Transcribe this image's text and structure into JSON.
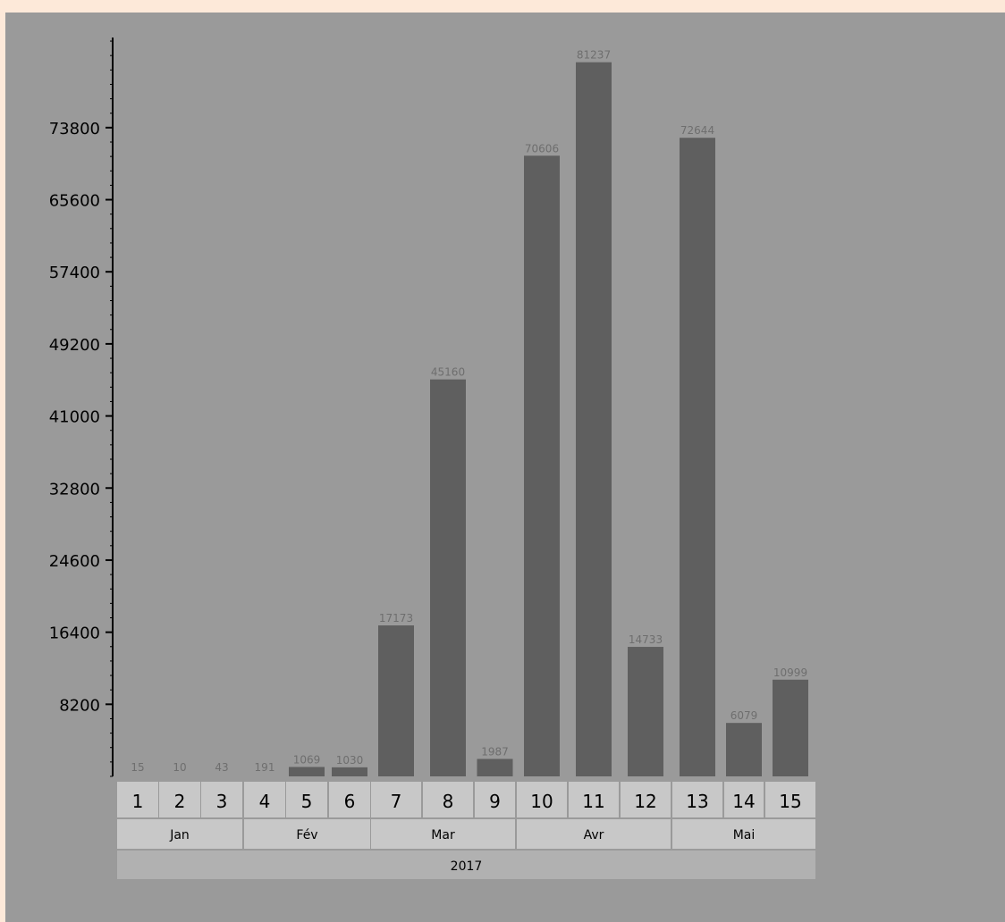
{
  "chart_data": {
    "type": "bar",
    "title": "",
    "xlabel": "",
    "ylabel": "",
    "ylim": [
      0,
      84050
    ],
    "yticks": [
      8200,
      16400,
      24600,
      32800,
      41000,
      49200,
      57400,
      65600,
      73800
    ],
    "categories": [
      "1",
      "2",
      "3",
      "4",
      "5",
      "6",
      "7",
      "8",
      "9",
      "10",
      "11",
      "12",
      "13",
      "14",
      "15"
    ],
    "values": [
      15,
      10,
      43,
      191,
      1069,
      1030,
      17173,
      45160,
      1987,
      70606,
      81237,
      14733,
      72644,
      6079,
      10999
    ],
    "value_labels": [
      "15",
      "10",
      "43",
      "191",
      "1069",
      "1030",
      "17173",
      "45160",
      "1987",
      "70606",
      "81237",
      "14733",
      "72644",
      "6079",
      "10999"
    ],
    "months": [
      {
        "label": "Jan",
        "span": [
          1,
          3
        ]
      },
      {
        "label": "Fév",
        "span": [
          4,
          6
        ]
      },
      {
        "label": "Mar",
        "span": [
          7,
          9
        ]
      },
      {
        "label": "Avr",
        "span": [
          10,
          12
        ]
      },
      {
        "label": "Mai",
        "span": [
          13,
          15
        ]
      }
    ],
    "year": {
      "label": "2017",
      "span": [
        1,
        15
      ]
    },
    "colors": {
      "bar": "#5f5f5f",
      "panel": "#9a9a9a",
      "frame": "#fde9d9",
      "header_cell": "#c8c8c8",
      "year_cell": "#b1b1b1",
      "value_label": "#6e6e6e",
      "axis": "#000000"
    },
    "grid": false,
    "legend": "none"
  }
}
